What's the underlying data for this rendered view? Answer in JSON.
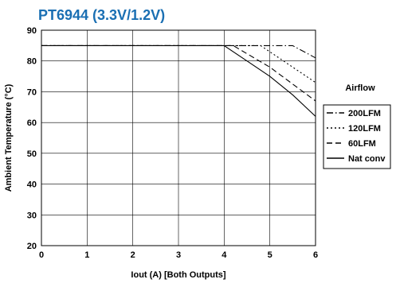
{
  "chart_data": {
    "type": "line",
    "title": "PT6944  (3.3V/1.2V)",
    "title_color": "#1a6fb3",
    "xlabel": "Iout (A)  [Both Outputs]",
    "ylabel": "Ambient Temperature (°C)",
    "xlim": [
      0,
      6
    ],
    "ylim": [
      20,
      90
    ],
    "x_ticks": [
      "0",
      "1",
      "2",
      "3",
      "4",
      "5",
      "6"
    ],
    "y_ticks": [
      "20",
      "30",
      "40",
      "50",
      "60",
      "70",
      "80",
      "90"
    ],
    "grid": true,
    "legend_title": "Airflow",
    "legend_placement": "right",
    "series": [
      {
        "name": "200LFM",
        "line_style": "dash-dot",
        "x": [
          0,
          5.5,
          6
        ],
        "y": [
          85,
          85,
          81
        ]
      },
      {
        "name": "120LFM",
        "line_style": "dotted",
        "x": [
          0,
          4.8,
          6
        ],
        "y": [
          85,
          85,
          73
        ]
      },
      {
        "name": "60LFM",
        "line_style": "dashed",
        "x": [
          0,
          4.2,
          5,
          6
        ],
        "y": [
          85,
          85,
          78,
          67
        ]
      },
      {
        "name": "Nat conv",
        "line_style": "solid",
        "x": [
          0,
          4,
          4.5,
          5,
          5.5,
          6
        ],
        "y": [
          85,
          85,
          80,
          75,
          69,
          62
        ]
      }
    ]
  }
}
